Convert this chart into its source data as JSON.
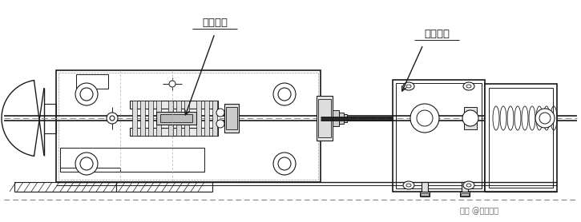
{
  "bg_color": "#ffffff",
  "line_color": "#1a1a1a",
  "dashed_color": "#666666",
  "label1": "杆杆装配",
  "label2": "电磁线圈",
  "watermark": "头条 @电梯资料",
  "figsize": [
    7.25,
    2.78
  ],
  "dpi": 100
}
